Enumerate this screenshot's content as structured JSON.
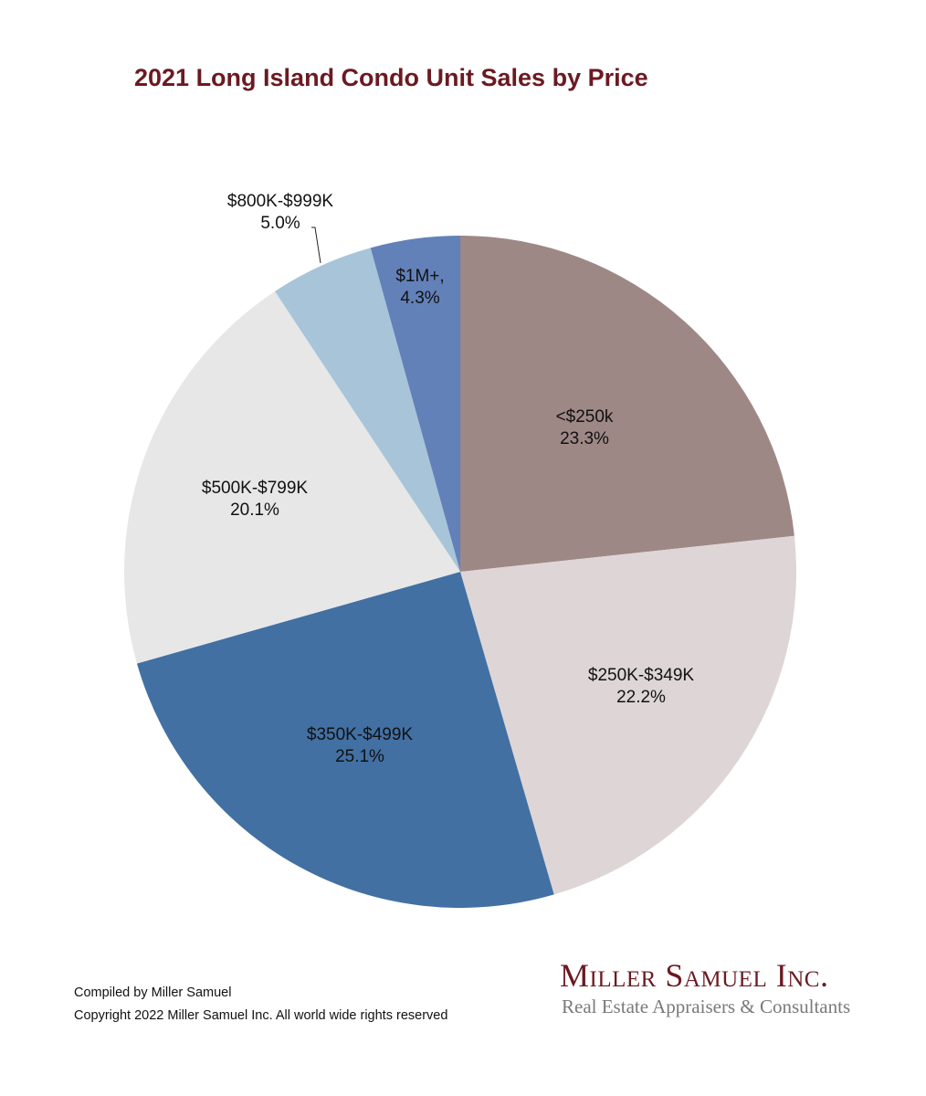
{
  "chart_data": {
    "type": "pie",
    "title": "2021 Long Island Condo Unit Sales by Price",
    "start_angle": "12 o'clock",
    "direction": "clockwise",
    "slices": [
      {
        "label": "<$250k",
        "value": 23.3,
        "value_label": "23.3%",
        "color": "#9e8886"
      },
      {
        "label": "$250K-$349K",
        "value": 22.2,
        "value_label": "22.2%",
        "color": "#ded6d6"
      },
      {
        "label": "$350K-$499K",
        "value": 25.1,
        "value_label": "25.1%",
        "color": "#4270a3"
      },
      {
        "label": "$500K-$799K",
        "value": 20.1,
        "value_label": "20.1%",
        "color": "#e7e7e7"
      },
      {
        "label": "$800K-$999K",
        "value": 5.0,
        "value_label": "5.0%",
        "color": "#a8c4d9"
      },
      {
        "label": "$1M+,",
        "value": 4.3,
        "value_label": "4.3%",
        "color": "#6281b8"
      }
    ]
  },
  "footer": {
    "compiled": "Compiled by Miller Samuel",
    "copyright": "Copyright 2022 Miller Samuel Inc. All world wide rights reserved"
  },
  "logo": {
    "name": "Miller Samuel Inc.",
    "tagline": "Real Estate Appraisers & Consultants"
  }
}
